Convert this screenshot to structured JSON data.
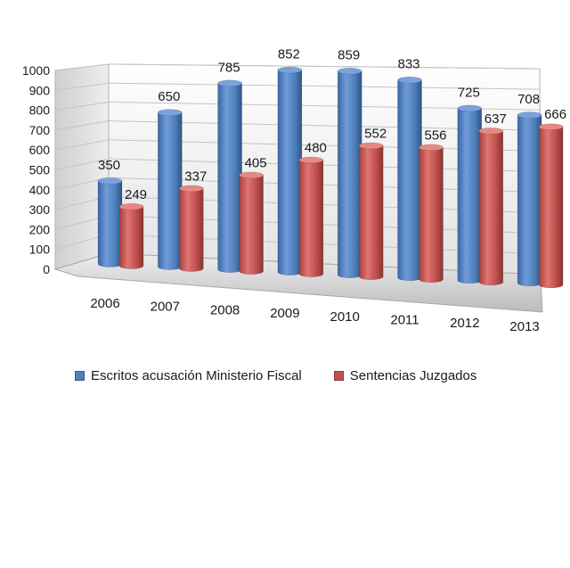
{
  "chart_data": {
    "type": "bar",
    "categories": [
      "2006",
      "2007",
      "2008",
      "2009",
      "2010",
      "2011",
      "2012",
      "2013"
    ],
    "series": [
      {
        "name": "Escritos acusación Ministerio Fiscal",
        "values": [
          350,
          650,
          785,
          852,
          859,
          833,
          725,
          708
        ],
        "color": "#4f81bd"
      },
      {
        "name": "Sentencias Juzgados",
        "values": [
          249,
          337,
          405,
          480,
          552,
          556,
          637,
          666
        ],
        "color": "#c0504d"
      }
    ],
    "yticks": [
      "0",
      "100",
      "200",
      "300",
      "400",
      "500",
      "600",
      "700",
      "800",
      "900",
      "1000"
    ],
    "ylim": [
      0,
      1000
    ],
    "grid": true,
    "legend_position": "bottom",
    "style": "3d-cylinder"
  }
}
